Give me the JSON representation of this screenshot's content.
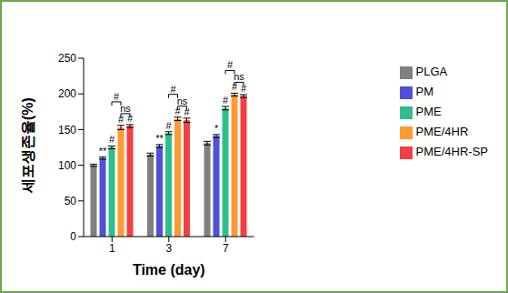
{
  "chart_data": {
    "type": "bar",
    "y_label": "세포생존율(%)",
    "x_label": "Time (day)",
    "categories": [
      "1",
      "3",
      "7"
    ],
    "ylim": [
      0,
      250
    ],
    "yticks": [
      0,
      50,
      100,
      150,
      200,
      250
    ],
    "grid": false,
    "legend": "right",
    "series": [
      {
        "name": "PLGA",
        "color": "#808080",
        "values": [
          100,
          115,
          131
        ],
        "errors": [
          1.5,
          2,
          2.5
        ],
        "significance": [
          null,
          null,
          null
        ]
      },
      {
        "name": "PM",
        "color": "#4f4fd9",
        "values": [
          110,
          127,
          141
        ],
        "errors": [
          1.5,
          2,
          2
        ],
        "significance": [
          "**",
          "**",
          "*"
        ]
      },
      {
        "name": "PME",
        "color": "#2fbf8f",
        "values": [
          125,
          145,
          180
        ],
        "errors": [
          2,
          2,
          2.5
        ],
        "significance": [
          "#",
          "#",
          "#"
        ]
      },
      {
        "name": "PME/4HR",
        "color": "#ff9a33",
        "values": [
          153,
          165,
          199
        ],
        "errors": [
          3,
          2.5,
          2
        ],
        "significance": [
          "#",
          "#",
          "#"
        ]
      },
      {
        "name": "PME/4HR-SP",
        "color": "#f44040",
        "values": [
          155,
          163,
          197
        ],
        "errors": [
          2,
          3,
          2
        ],
        "significance": [
          "#",
          "#",
          "#"
        ]
      }
    ],
    "comparisons": [
      {
        "category": "1",
        "from": "PME/4HR",
        "to": "PME/4HR-SP",
        "label": "ns"
      },
      {
        "category": "1",
        "from": "PME",
        "to": "PME/4HR",
        "label": "#"
      },
      {
        "category": "3",
        "from": "PME/4HR",
        "to": "PME/4HR-SP",
        "label": "ns"
      },
      {
        "category": "3",
        "from": "PME",
        "to": "PME/4HR",
        "label": "#"
      },
      {
        "category": "7",
        "from": "PME/4HR",
        "to": "PME/4HR-SP",
        "label": "ns"
      },
      {
        "category": "7",
        "from": "PME",
        "to": "PME/4HR",
        "label": "#"
      }
    ]
  }
}
